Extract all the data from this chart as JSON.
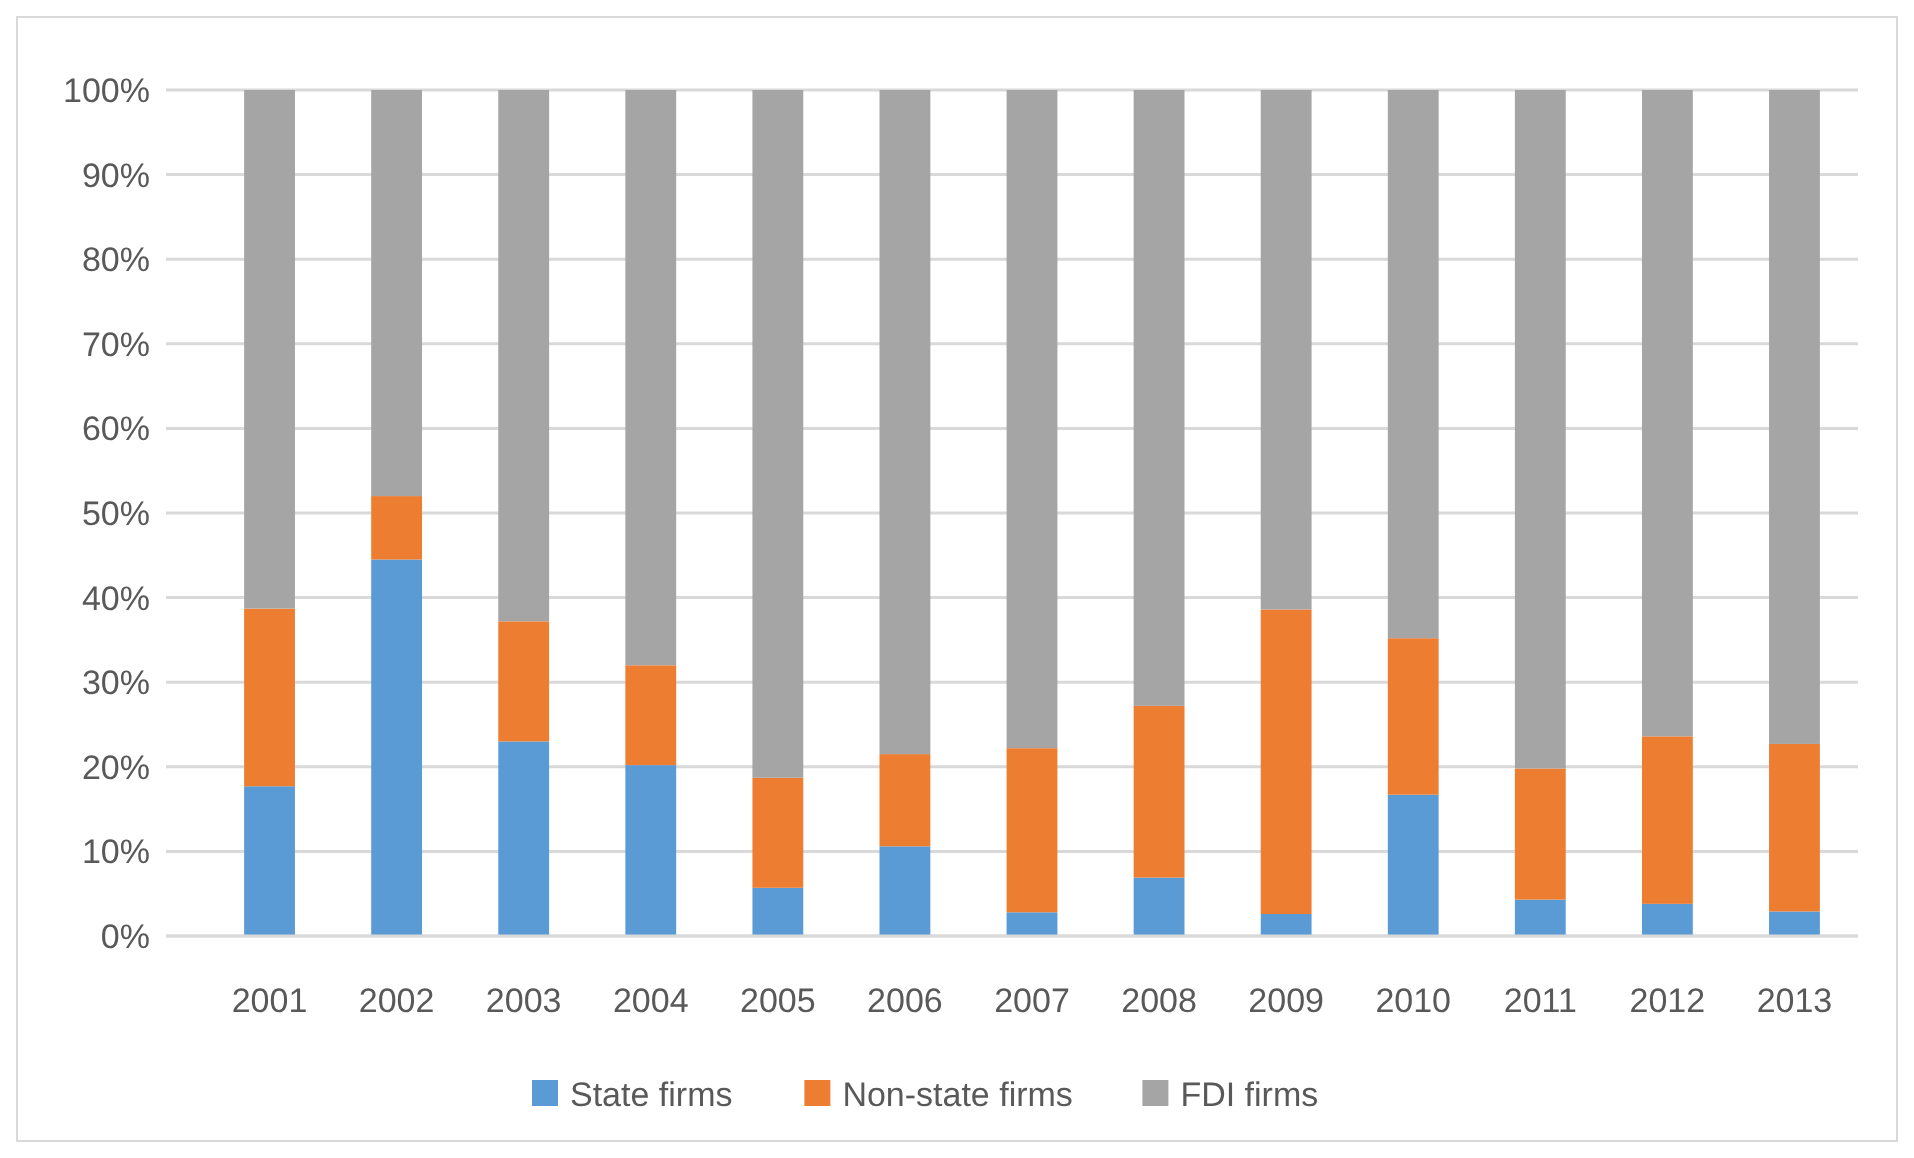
{
  "chart_data": {
    "type": "bar",
    "stacked": true,
    "categories": [
      "2001",
      "2002",
      "2003",
      "2004",
      "2005",
      "2006",
      "2007",
      "2008",
      "2009",
      "2010",
      "2011",
      "2012",
      "2013"
    ],
    "series": [
      {
        "name": "State firms",
        "color": "#5b9bd5",
        "values": [
          17.7,
          44.5,
          23.0,
          20.2,
          5.7,
          10.6,
          2.8,
          6.9,
          2.6,
          16.7,
          4.3,
          3.8,
          2.9
        ]
      },
      {
        "name": "Non-state firms",
        "color": "#ed7d31",
        "values": [
          21.0,
          7.5,
          14.2,
          11.8,
          13.0,
          10.9,
          19.4,
          20.3,
          36.0,
          18.5,
          15.5,
          19.8,
          19.8
        ]
      },
      {
        "name": "FDI firms",
        "color": "#a5a5a5",
        "values": [
          61.3,
          48.0,
          62.8,
          68.0,
          81.3,
          78.5,
          77.8,
          72.8,
          61.4,
          64.8,
          80.2,
          76.4,
          77.3
        ]
      }
    ],
    "ylim": [
      0,
      100
    ],
    "yticks": [
      {
        "value": 0,
        "label": "0%"
      },
      {
        "value": 10,
        "label": "10%"
      },
      {
        "value": 20,
        "label": "20%"
      },
      {
        "value": 30,
        "label": "30%"
      },
      {
        "value": 40,
        "label": "40%"
      },
      {
        "value": 50,
        "label": "50%"
      },
      {
        "value": 60,
        "label": "60%"
      },
      {
        "value": 70,
        "label": "70%"
      },
      {
        "value": 80,
        "label": "80%"
      },
      {
        "value": 90,
        "label": "90%"
      },
      {
        "value": 100,
        "label": "100%"
      }
    ],
    "grid": "y",
    "legend": "bottom"
  }
}
